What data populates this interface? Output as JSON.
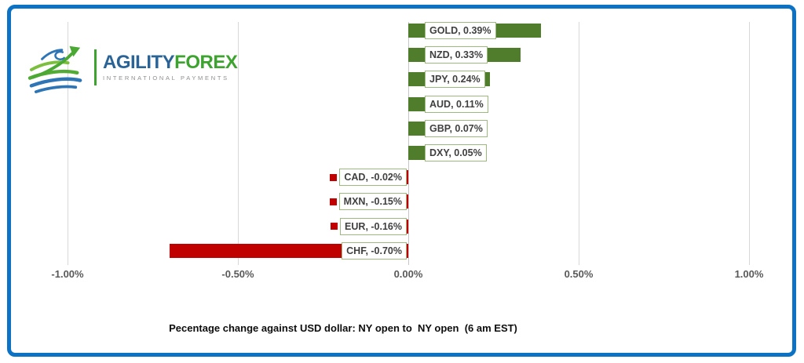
{
  "logo": {
    "brand_primary": "AGILITY",
    "brand_secondary": "FOREX",
    "tagline": "INTERNATIONAL PAYMENTS",
    "colors": {
      "navy": "#2a6496",
      "green": "#3da32f"
    }
  },
  "frame_color": "#0c72c4",
  "chart_data": {
    "type": "bar",
    "orientation": "horizontal",
    "title": "Pecentage change against USD dollar: NY open to  NY open  (6 am EST)",
    "categories": [
      "GOLD",
      "NZD",
      "JPY",
      "AUD",
      "GBP",
      "DXY",
      "CAD",
      "MXN",
      "EUR",
      "CHF"
    ],
    "values": [
      0.39,
      0.33,
      0.24,
      0.11,
      0.07,
      0.05,
      -0.02,
      -0.15,
      -0.16,
      -0.7
    ],
    "labels": [
      "GOLD, 0.39%",
      "NZD, 0.33%",
      "JPY, 0.24%",
      "AUD, 0.11%",
      "GBP, 0.07%",
      "DXY, 0.05%",
      "CAD, -0.02%",
      "MXN, -0.15%",
      "EUR, -0.16%",
      "CHF, -0.70%"
    ],
    "xlim": [
      -1.0,
      1.0
    ],
    "x_ticks": [
      {
        "label": "-1.00%",
        "value": -1.0
      },
      {
        "label": "-0.50%",
        "value": -0.5
      },
      {
        "label": "0.00%",
        "value": 0.0
      },
      {
        "label": "0.50%",
        "value": 0.5
      },
      {
        "label": "1.00%",
        "value": 1.0
      }
    ],
    "grid": true,
    "legend_position": "none",
    "colors": {
      "positive": "#4f7d2c",
      "negative": "#c00000",
      "label_border": "#9eb97f",
      "gridline": "#d8d8d8",
      "axis_text": "#595959"
    }
  }
}
